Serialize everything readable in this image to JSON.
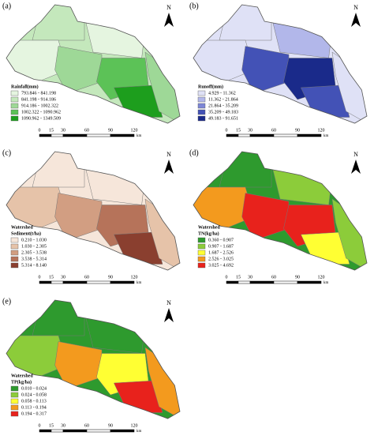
{
  "panels": [
    {
      "label": "(a)",
      "north": "N",
      "legend_title": [
        "Rainfall(mm)"
      ],
      "legend": [
        {
          "range": "793.846 - 841.198",
          "color": "#e5f5e0"
        },
        {
          "range": "841.198 - 914.186",
          "color": "#c4e8bc"
        },
        {
          "range": "914.186 - 1002.322",
          "color": "#9ed897"
        },
        {
          "range": "1002.322 - 1090.962",
          "color": "#5cc257"
        },
        {
          "range": "1090.962 - 1349.509",
          "color": "#1d9e1d"
        }
      ],
      "scale_ticks": [
        0,
        15,
        30,
        60,
        90,
        120
      ],
      "scale_unit": "km"
    },
    {
      "label": "(b)",
      "north": "N",
      "legend_title": [
        "Runoff(mm)"
      ],
      "legend": [
        {
          "range": "4.929 - 11.362",
          "color": "#dfe1f6"
        },
        {
          "range": "11.362 - 21.864",
          "color": "#b2b7ea"
        },
        {
          "range": "21.864 - 35.209",
          "color": "#7d86d6"
        },
        {
          "range": "35.209 - 49.183",
          "color": "#4352b6"
        },
        {
          "range": "49.183 - 91.651",
          "color": "#1a2a8a"
        }
      ],
      "scale_ticks": [
        0,
        15,
        30,
        60,
        90,
        120
      ],
      "scale_unit": "km"
    },
    {
      "label": "(c)",
      "north": "N",
      "legend_title": [
        "Watershed",
        "Sediment(t/ha)"
      ],
      "legend": [
        {
          "range": "0.210 - 1.030",
          "color": "#f6e6da"
        },
        {
          "range": "1.030 - 2.305",
          "color": "#e6c3a9"
        },
        {
          "range": "2.305 - 3.538",
          "color": "#d29e82"
        },
        {
          "range": "3.538 - 5.314",
          "color": "#b6735a"
        },
        {
          "range": "5.314 - 8.140",
          "color": "#8a3f2f"
        }
      ],
      "scale_ticks": [
        0,
        15,
        30,
        60,
        90,
        120
      ],
      "scale_unit": "km"
    },
    {
      "label": "(d)",
      "north": "N",
      "legend_title": [
        "Watershed",
        "TN(kg/ha)"
      ],
      "legend": [
        {
          "range": "0.360 - 0.907",
          "color": "#2e9a2e"
        },
        {
          "range": "0.907 - 1.687",
          "color": "#8ccc3a"
        },
        {
          "range": "1.687 - 2.526",
          "color": "#ffff33"
        },
        {
          "range": "2.526 - 3.025",
          "color": "#f39a1e"
        },
        {
          "range": "3.025 - 4.692",
          "color": "#e8221c"
        }
      ],
      "scale_ticks": [
        0,
        15,
        30,
        60,
        90,
        120
      ],
      "scale_unit": "km"
    },
    {
      "label": "(e)",
      "north": "N",
      "legend_title": [
        "Watershed",
        "TP(kg/ha)"
      ],
      "legend": [
        {
          "range": "0.010 - 0.024",
          "color": "#2e9a2e"
        },
        {
          "range": "0.024 - 0.058",
          "color": "#8ccc3a"
        },
        {
          "range": "0.058 - 0.113",
          "color": "#ffff33"
        },
        {
          "range": "0.113 - 0.194",
          "color": "#f39a1e"
        },
        {
          "range": "0.194 - 0.317",
          "color": "#e8221c"
        }
      ],
      "scale_ticks": [
        0,
        15,
        30,
        60,
        90,
        120
      ],
      "scale_unit": "km"
    }
  ]
}
